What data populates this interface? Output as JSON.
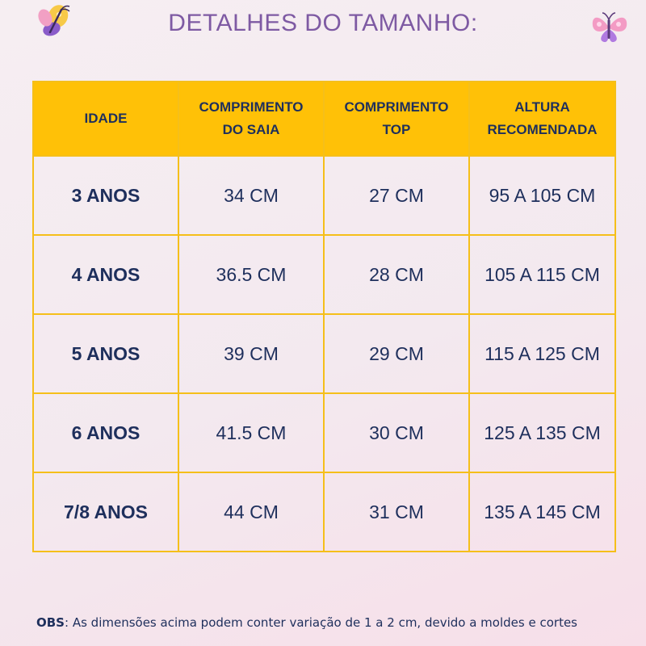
{
  "title": "DETALHES DO TAMANHO:",
  "table": {
    "headers": [
      {
        "line1": "IDADE",
        "line2": ""
      },
      {
        "line1": "COMPRIMENTO",
        "line2": "DO SAIA"
      },
      {
        "line1": "COMPRIMENTO",
        "line2": "TOP"
      },
      {
        "line1": "ALTURA",
        "line2": "RECOMENDADA"
      }
    ],
    "rows": [
      [
        "3 ANOS",
        "34 CM",
        "27 CM",
        "95 A 105 CM"
      ],
      [
        "4 ANOS",
        "36.5 CM",
        "28 CM",
        "105 A 115 CM"
      ],
      [
        "5 ANOS",
        "39 CM",
        "29 CM",
        "115 A 125 CM"
      ],
      [
        "6 ANOS",
        "41.5 CM",
        "30 CM",
        "125 A 135 CM"
      ],
      [
        "7/8 ANOS",
        "44 CM",
        "31 CM",
        "135 A 145 CM"
      ]
    ]
  },
  "note": {
    "label": "OBS",
    "text": ": As dimensões acima podem conter variação de 1 a 2 cm, devido a moldes e cortes"
  },
  "colors": {
    "title": "#7e5aa3",
    "header_bg": "#ffc107",
    "border": "#f5bf1a",
    "text": "#1e2f5c"
  },
  "icons": [
    "butterfly-icon",
    "butterfly-icon"
  ]
}
